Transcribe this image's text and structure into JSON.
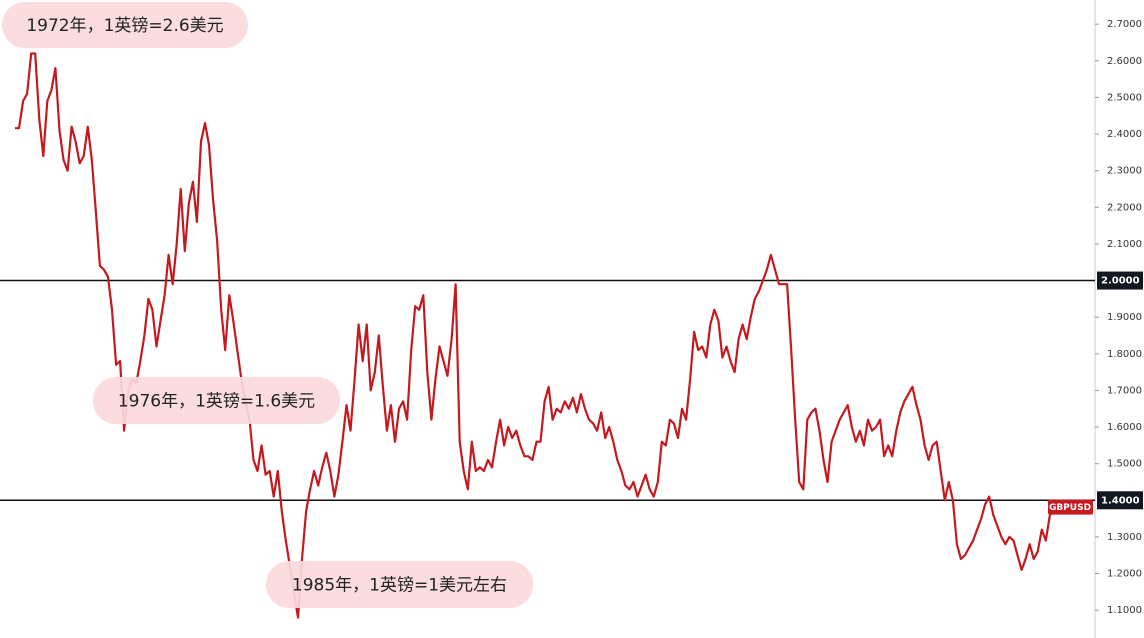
{
  "chart_data": {
    "type": "line",
    "series": [
      {
        "name": "GBPUSD",
        "color": "#c41a1f",
        "values": [
          2.416,
          2.416,
          2.49,
          2.51,
          2.62,
          2.62,
          2.44,
          2.34,
          2.49,
          2.52,
          2.58,
          2.41,
          2.33,
          2.3,
          2.42,
          2.38,
          2.32,
          2.34,
          2.42,
          2.33,
          2.19,
          2.04,
          2.03,
          2.01,
          1.92,
          1.77,
          1.78,
          1.59,
          1.7,
          1.73,
          1.72,
          1.78,
          1.85,
          1.95,
          1.92,
          1.82,
          1.89,
          1.96,
          2.07,
          1.99,
          2.1,
          2.25,
          2.08,
          2.21,
          2.27,
          2.16,
          2.38,
          2.43,
          2.37,
          2.22,
          2.11,
          1.92,
          1.81,
          1.96,
          1.89,
          1.81,
          1.73,
          1.67,
          1.62,
          1.51,
          1.48,
          1.55,
          1.47,
          1.48,
          1.41,
          1.48,
          1.37,
          1.29,
          1.22,
          1.15,
          1.08,
          1.24,
          1.37,
          1.43,
          1.48,
          1.44,
          1.49,
          1.53,
          1.48,
          1.41,
          1.47,
          1.56,
          1.66,
          1.59,
          1.73,
          1.88,
          1.78,
          1.88,
          1.7,
          1.75,
          1.85,
          1.71,
          1.59,
          1.66,
          1.56,
          1.65,
          1.67,
          1.62,
          1.81,
          1.93,
          1.92,
          1.96,
          1.75,
          1.62,
          1.73,
          1.82,
          1.78,
          1.74,
          1.84,
          1.99,
          1.56,
          1.48,
          1.43,
          1.56,
          1.48,
          1.49,
          1.48,
          1.51,
          1.49,
          1.56,
          1.62,
          1.55,
          1.6,
          1.57,
          1.59,
          1.55,
          1.52,
          1.52,
          1.51,
          1.56,
          1.56,
          1.67,
          1.71,
          1.62,
          1.65,
          1.64,
          1.67,
          1.65,
          1.68,
          1.64,
          1.69,
          1.65,
          1.62,
          1.61,
          1.59,
          1.64,
          1.57,
          1.6,
          1.56,
          1.51,
          1.48,
          1.44,
          1.43,
          1.45,
          1.41,
          1.44,
          1.47,
          1.43,
          1.41,
          1.45,
          1.56,
          1.55,
          1.62,
          1.61,
          1.57,
          1.65,
          1.62,
          1.73,
          1.86,
          1.81,
          1.82,
          1.79,
          1.88,
          1.92,
          1.89,
          1.79,
          1.82,
          1.78,
          1.75,
          1.84,
          1.88,
          1.84,
          1.9,
          1.95,
          1.97,
          2.0,
          2.03,
          2.07,
          2.03,
          1.99,
          1.99,
          1.99,
          1.81,
          1.62,
          1.45,
          1.43,
          1.62,
          1.64,
          1.65,
          1.59,
          1.51,
          1.45,
          1.56,
          1.59,
          1.62,
          1.64,
          1.66,
          1.6,
          1.56,
          1.59,
          1.55,
          1.62,
          1.59,
          1.6,
          1.62,
          1.52,
          1.55,
          1.52,
          1.59,
          1.64,
          1.67,
          1.69,
          1.71,
          1.66,
          1.62,
          1.55,
          1.51,
          1.55,
          1.56,
          1.48,
          1.4,
          1.45,
          1.4,
          1.28,
          1.24,
          1.25,
          1.27,
          1.29,
          1.32,
          1.35,
          1.39,
          1.41,
          1.36,
          1.33,
          1.3,
          1.28,
          1.3,
          1.29,
          1.25,
          1.21,
          1.24,
          1.28,
          1.24,
          1.26,
          1.32,
          1.29,
          1.36,
          1.37,
          1.37,
          1.38
        ]
      }
    ],
    "ylim": [
      1.024,
      2.766
    ],
    "yticks": [
      {
        "value": 1.1,
        "label": "1.1000"
      },
      {
        "value": 1.2,
        "label": "1.2000"
      },
      {
        "value": 1.3,
        "label": "1.3000"
      },
      {
        "value": 1.5,
        "label": "1.5000"
      },
      {
        "value": 1.6,
        "label": "1.6000"
      },
      {
        "value": 1.7,
        "label": "1.7000"
      },
      {
        "value": 1.8,
        "label": "1.8000"
      },
      {
        "value": 1.9,
        "label": "1.9000"
      },
      {
        "value": 2.1,
        "label": "2.1000"
      },
      {
        "value": 2.2,
        "label": "2.2000"
      },
      {
        "value": 2.3,
        "label": "2.3000"
      },
      {
        "value": 2.4,
        "label": "2.4000"
      },
      {
        "value": 2.5,
        "label": "2.5000"
      },
      {
        "value": 2.6,
        "label": "2.6000"
      },
      {
        "value": 2.7,
        "label": "2.7000"
      }
    ],
    "hlines": [
      {
        "value": 2.0,
        "label": "2.0000"
      },
      {
        "value": 1.4,
        "label": "1.4000"
      }
    ],
    "annotations": [
      "1972年，1英镑=2.6美元",
      "1976年，1英镑=1.6美元",
      "1985年，1英镑=1美元左右"
    ]
  }
}
